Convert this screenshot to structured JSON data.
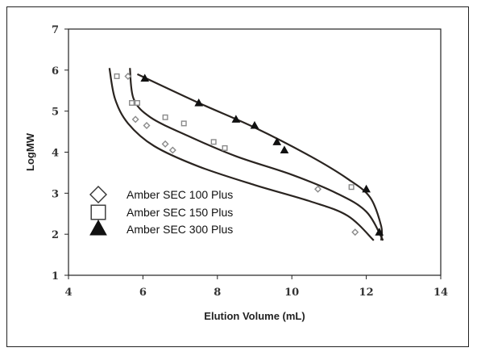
{
  "chart_data": {
    "type": "scatter",
    "xlabel": "Elution Volume (mL)",
    "ylabel": "LogMW",
    "xlim": [
      4,
      14
    ],
    "ylim": [
      1,
      7
    ],
    "xticks": [
      "4",
      "6",
      "8",
      "10",
      "12",
      "14"
    ],
    "yticks": [
      "1",
      "2",
      "3",
      "4",
      "5",
      "6",
      "7"
    ],
    "grid": false,
    "legend_position": "left",
    "series": [
      {
        "name": "Amber SEC 100 Plus",
        "marker": "diamond",
        "color": "#8a8a8a",
        "points": [
          {
            "x": 5.6,
            "y": 5.85
          },
          {
            "x": 5.8,
            "y": 4.8
          },
          {
            "x": 6.1,
            "y": 4.65
          },
          {
            "x": 6.6,
            "y": 4.2
          },
          {
            "x": 6.8,
            "y": 4.05
          },
          {
            "x": 10.7,
            "y": 3.1
          },
          {
            "x": 11.7,
            "y": 2.05
          }
        ],
        "fit": [
          {
            "x": 5.1,
            "y": 6.05
          },
          {
            "x": 5.25,
            "y": 5.3
          },
          {
            "x": 5.6,
            "y": 4.7
          },
          {
            "x": 6.3,
            "y": 4.15
          },
          {
            "x": 7.5,
            "y": 3.65
          },
          {
            "x": 9.0,
            "y": 3.2
          },
          {
            "x": 10.5,
            "y": 2.8
          },
          {
            "x": 11.5,
            "y": 2.45
          },
          {
            "x": 12.2,
            "y": 1.85
          }
        ]
      },
      {
        "name": "Amber SEC 150 Plus",
        "marker": "square",
        "color": "#8a8a8a",
        "points": [
          {
            "x": 5.3,
            "y": 5.85
          },
          {
            "x": 5.7,
            "y": 5.2
          },
          {
            "x": 5.85,
            "y": 5.2
          },
          {
            "x": 6.6,
            "y": 4.85
          },
          {
            "x": 7.1,
            "y": 4.7
          },
          {
            "x": 7.9,
            "y": 4.25
          },
          {
            "x": 8.2,
            "y": 4.1
          },
          {
            "x": 11.6,
            "y": 3.15
          }
        ],
        "fit": [
          {
            "x": 5.65,
            "y": 6.05
          },
          {
            "x": 5.75,
            "y": 5.3
          },
          {
            "x": 6.2,
            "y": 4.85
          },
          {
            "x": 7.2,
            "y": 4.4
          },
          {
            "x": 8.5,
            "y": 3.9
          },
          {
            "x": 10.0,
            "y": 3.45
          },
          {
            "x": 11.2,
            "y": 3.0
          },
          {
            "x": 12.0,
            "y": 2.55
          },
          {
            "x": 12.45,
            "y": 1.85
          }
        ]
      },
      {
        "name": "Amber SEC 300 Plus",
        "marker": "triangle",
        "color": "#111111",
        "points": [
          {
            "x": 6.05,
            "y": 5.8
          },
          {
            "x": 7.5,
            "y": 5.2
          },
          {
            "x": 8.5,
            "y": 4.8
          },
          {
            "x": 9.0,
            "y": 4.65
          },
          {
            "x": 9.6,
            "y": 4.25
          },
          {
            "x": 9.8,
            "y": 4.05
          },
          {
            "x": 12.0,
            "y": 3.1
          },
          {
            "x": 12.35,
            "y": 2.05
          }
        ],
        "fit": [
          {
            "x": 5.85,
            "y": 5.9
          },
          {
            "x": 7.5,
            "y": 5.2
          },
          {
            "x": 9.0,
            "y": 4.6
          },
          {
            "x": 10.5,
            "y": 3.9
          },
          {
            "x": 11.5,
            "y": 3.35
          },
          {
            "x": 12.1,
            "y": 2.9
          },
          {
            "x": 12.4,
            "y": 2.2
          },
          {
            "x": 12.4,
            "y": 1.85
          }
        ]
      }
    ]
  }
}
